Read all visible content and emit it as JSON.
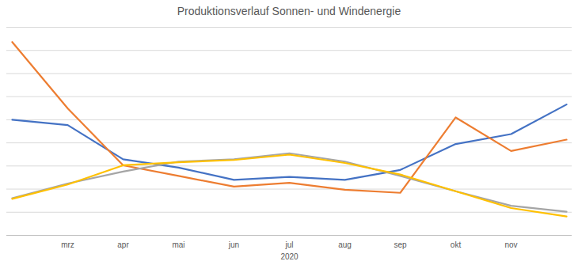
{
  "chart_data": {
    "type": "line",
    "title": "Produktionsverlauf Sonnen- und Windenergie",
    "x_label": "2020",
    "categories": [
      null,
      "mrz",
      "apr",
      "mai",
      "jun",
      "jul",
      "aug",
      "sep",
      "okt",
      "nov",
      null
    ],
    "series": [
      {
        "color": "#4472c4",
        "values": [
          5.0,
          4.77,
          3.29,
          2.93,
          2.4,
          2.53,
          2.4,
          2.83,
          3.95,
          4.38,
          5.66
        ]
      },
      {
        "color": "#ed7d31",
        "values": [
          8.36,
          5.49,
          3.03,
          2.57,
          2.11,
          2.27,
          1.97,
          1.84,
          5.1,
          3.65,
          4.14
        ]
      },
      {
        "color": "#a5a5a5",
        "values": [
          1.61,
          2.24,
          2.76,
          3.19,
          3.29,
          3.55,
          3.19,
          2.57,
          1.91,
          1.28,
          1.02
        ]
      },
      {
        "color": "#ffc000",
        "values": [
          1.58,
          2.2,
          3.03,
          3.16,
          3.26,
          3.49,
          3.13,
          2.63,
          1.91,
          1.18,
          0.82
        ]
      }
    ],
    "ylim": [
      0,
      9
    ],
    "yticks": [
      0,
      1,
      2,
      3,
      4,
      5,
      6,
      7,
      8,
      9
    ],
    "grid": true,
    "tick_labels": "x"
  }
}
